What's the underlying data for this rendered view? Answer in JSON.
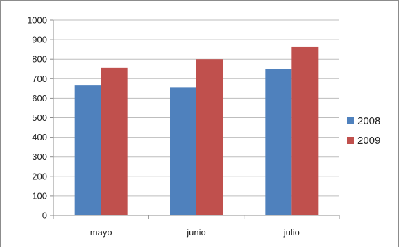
{
  "chart_data": {
    "type": "bar",
    "categories": [
      "mayo",
      "junio",
      "julio"
    ],
    "series": [
      {
        "name": "2008",
        "color": "#4F81BD",
        "values": [
          665,
          657,
          750
        ]
      },
      {
        "name": "2009",
        "color": "#C0504D",
        "values": [
          755,
          800,
          865
        ]
      }
    ],
    "ylim": [
      0,
      1000
    ],
    "yticks": [
      0,
      100,
      200,
      300,
      400,
      500,
      600,
      700,
      800,
      900,
      1000
    ],
    "grid": true,
    "legend_position": "right",
    "title": "",
    "xlabel": "",
    "ylabel": ""
  }
}
